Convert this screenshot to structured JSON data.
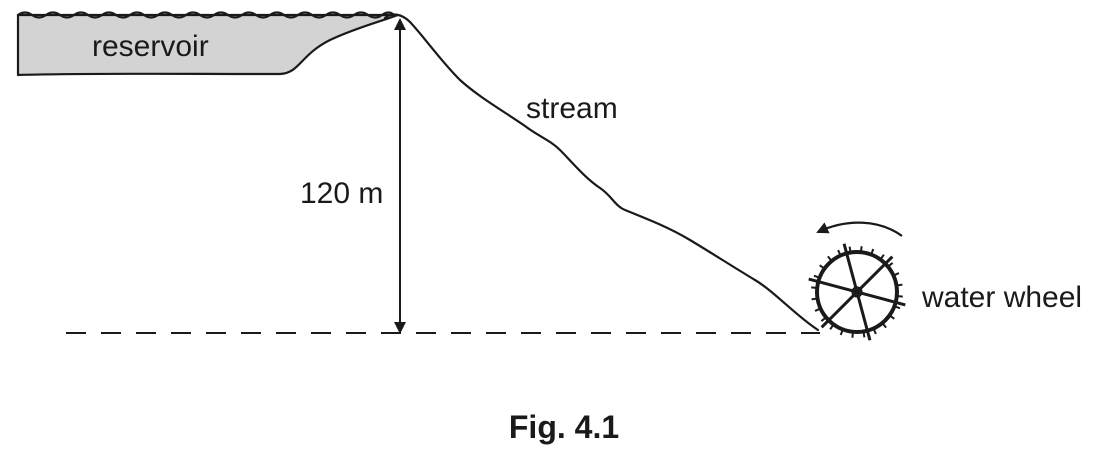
{
  "labels": {
    "reservoir": "reservoir",
    "stream": "stream",
    "height": "120 m",
    "water_wheel": "water wheel"
  },
  "caption": "Fig. 4.1",
  "colors": {
    "reservoir_fill": "#d3d3d3",
    "ink": "#1a1a1a"
  },
  "icons": {
    "wheel": "water-wheel-icon",
    "rotation": "curved-arrow-anticlockwise-icon"
  }
}
